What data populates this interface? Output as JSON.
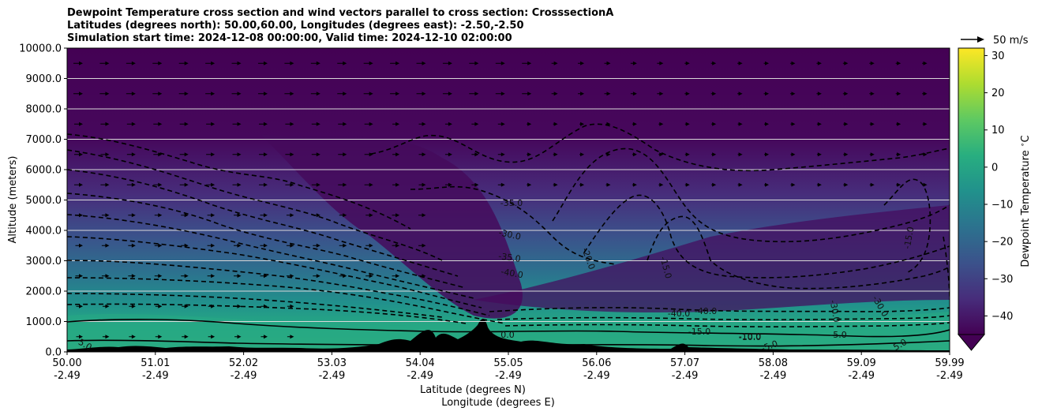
{
  "title_lines": [
    "Dewpoint Temperature cross section and wind vectors parallel to cross section: CrosssectionA",
    "Latitudes (degrees north): 50.00,60.00, Longitudes (degrees east): -2.50,-2.50",
    "Simulation start time: 2024-12-08 00:00:00, Valid time: 2024-12-10 02:00:00"
  ],
  "quiver_key": "50 m/s",
  "chart_data": {
    "type": "heatmap",
    "title": "Dewpoint Temperature cross section and wind vectors parallel to cross section: CrosssectionA",
    "xlabel": "Latitude (degrees N)",
    "xlabel2": "Longitude (degrees E)",
    "ylabel": "Altitude (meters)",
    "colorbar_label": "Dewpoint Temperature $^\\circ$C",
    "ylim": [
      0,
      10000
    ],
    "xlim": [
      50.0,
      59.99
    ],
    "colorscale": "viridis",
    "clim": [
      -45,
      32
    ],
    "yticks": [
      "0.0",
      "1000.0",
      "2000.0",
      "3000.0",
      "4000.0",
      "5000.0",
      "6000.0",
      "7000.0",
      "8000.0",
      "9000.0",
      "10000.0"
    ],
    "xticks": [
      {
        "lat": "50.00",
        "lon": "-2.49"
      },
      {
        "lat": "51.01",
        "lon": "-2.49"
      },
      {
        "lat": "52.02",
        "lon": "-2.49"
      },
      {
        "lat": "53.03",
        "lon": "-2.49"
      },
      {
        "lat": "54.04",
        "lon": "-2.49"
      },
      {
        "lat": "55.05",
        "lon": "-2.49"
      },
      {
        "lat": "56.06",
        "lon": "-2.49"
      },
      {
        "lat": "57.07",
        "lon": "-2.49"
      },
      {
        "lat": "58.08",
        "lon": "-2.49"
      },
      {
        "lat": "59.09",
        "lon": "-2.49"
      },
      {
        "lat": "59.99",
        "lon": "-2.49"
      }
    ],
    "colorbar_ticks": [
      "30",
      "20",
      "10",
      "0",
      "−10",
      "−20",
      "−30",
      "−40"
    ],
    "contour_labels": [
      "-35.0",
      "-30.0",
      "-35.0",
      "-40.0",
      "-20.0",
      "-15.0",
      "-15.0",
      "-40.0",
      "-40.0",
      "-10.0",
      "-15.0",
      "-30.0",
      "-30.0",
      "-5.0",
      "5.0",
      "0.0",
      "-10.0",
      "-5.0",
      "5.0"
    ],
    "grid": "horizontal"
  }
}
